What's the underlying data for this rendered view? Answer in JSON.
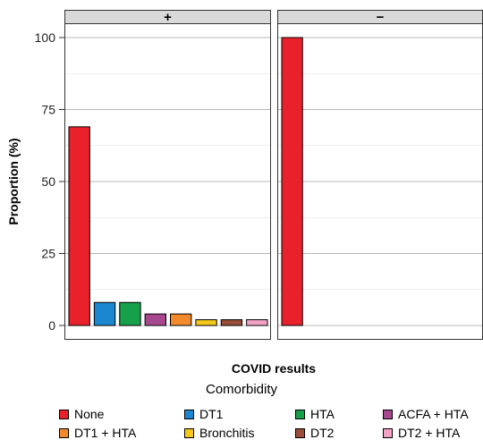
{
  "chart_data": {
    "type": "bar",
    "title": "",
    "xlabel": "COVID results",
    "ylabel": "Proportion (%)",
    "ylim": [
      0,
      110
    ],
    "yticks": [
      0,
      25,
      50,
      75,
      100
    ],
    "grid": true,
    "legend": {
      "title": "Comorbidity",
      "position": "bottom",
      "entries": [
        {
          "label": "None",
          "color": "#e8212b"
        },
        {
          "label": "DT1",
          "color": "#1b87d0"
        },
        {
          "label": "HTA",
          "color": "#15a04a"
        },
        {
          "label": "ACFA + HTA",
          "color": "#a7478e"
        },
        {
          "label": "DT1 + HTA",
          "color": "#f28a2b"
        },
        {
          "label": "Bronchitis",
          "color": "#f3c81a"
        },
        {
          "label": "DT2",
          "color": "#9a4e3a"
        },
        {
          "label": "DT2 + HTA",
          "color": "#f4a3c7"
        }
      ]
    },
    "panels": [
      {
        "label": "+",
        "bars": [
          {
            "category": "None",
            "value": 69
          },
          {
            "category": "DT1",
            "value": 8
          },
          {
            "category": "HTA",
            "value": 8
          },
          {
            "category": "ACFA + HTA",
            "value": 4
          },
          {
            "category": "DT1 + HTA",
            "value": 4
          },
          {
            "category": "Bronchitis",
            "value": 2
          },
          {
            "category": "DT2",
            "value": 2
          },
          {
            "category": "DT2 + HTA",
            "value": 2
          }
        ]
      },
      {
        "label": "−",
        "bars": [
          {
            "category": "None",
            "value": 100
          }
        ]
      }
    ]
  }
}
